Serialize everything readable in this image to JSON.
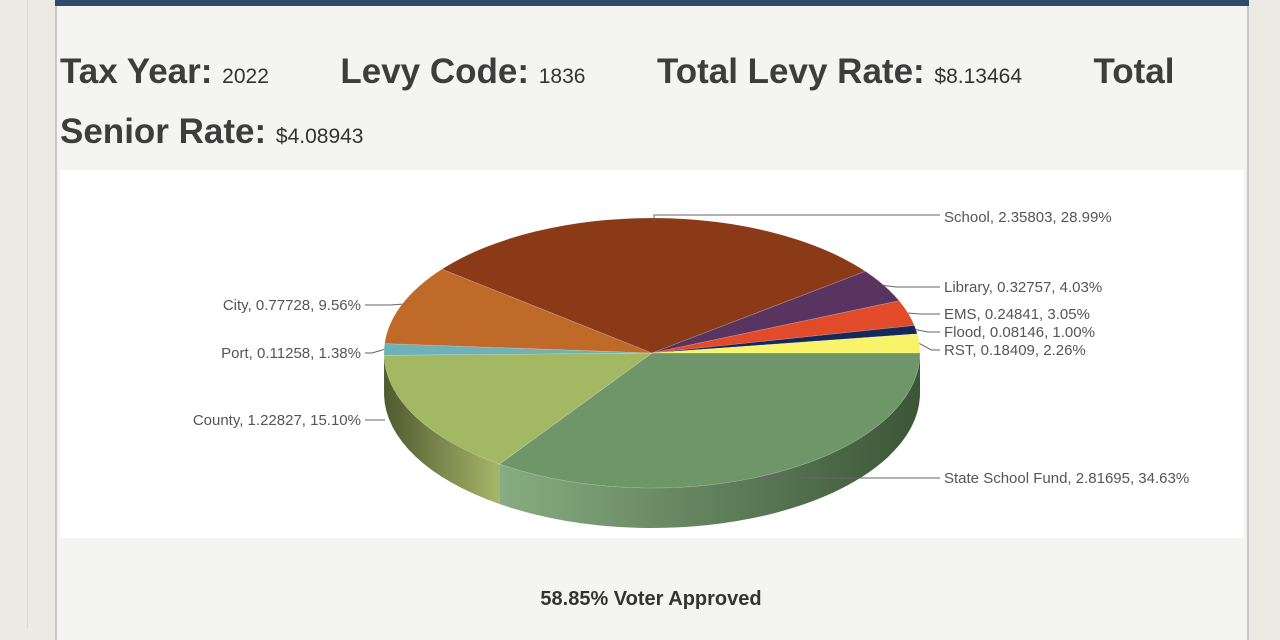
{
  "header": {
    "tax_year_label": "Tax Year:",
    "tax_year": "2022",
    "levy_code_label": "Levy Code:",
    "levy_code": "1836",
    "total_levy_rate_label": "Total Levy Rate:",
    "total_levy_rate": "$8.13464",
    "total_senior_rate_label_1": "Total",
    "total_senior_rate_label_2": "Senior Rate:",
    "total_senior_rate": "$4.08943"
  },
  "footer": {
    "voter_approved": "58.85% Voter Approved"
  },
  "chart_data": {
    "type": "pie",
    "style": "3d",
    "series": [
      {
        "name": "State School Fund",
        "value": 2.81695,
        "percent": 34.63,
        "color": "#6e9669",
        "label": "State School Fund, 2.81695, 34.63%"
      },
      {
        "name": "County",
        "value": 1.22827,
        "percent": 15.1,
        "color": "#a3b862",
        "label": "County, 1.22827, 15.10%"
      },
      {
        "name": "Port",
        "value": 0.11258,
        "percent": 1.38,
        "color": "#6eb1b7",
        "label": "Port, 0.11258, 1.38%"
      },
      {
        "name": "City",
        "value": 0.77728,
        "percent": 9.56,
        "color": "#c06a2a",
        "label": "City, 0.77728, 9.56%"
      },
      {
        "name": "School",
        "value": 2.35803,
        "percent": 28.99,
        "color": "#8a3a17",
        "label": "School, 2.35803, 28.99%"
      },
      {
        "name": "Library",
        "value": 0.32757,
        "percent": 4.03,
        "color": "#5a3461",
        "label": "Library, 0.32757, 4.03%"
      },
      {
        "name": "EMS",
        "value": 0.24841,
        "percent": 3.05,
        "color": "#e24b2a",
        "label": "EMS, 0.24841, 3.05%"
      },
      {
        "name": "Flood",
        "value": 0.08146,
        "percent": 1.0,
        "color": "#15285a",
        "label": "Flood, 0.08146, 1.00%"
      },
      {
        "name": "RST",
        "value": 0.18409,
        "percent": 2.26,
        "color": "#f9f36a",
        "label": "RST, 0.18409, 2.26%"
      }
    ]
  }
}
